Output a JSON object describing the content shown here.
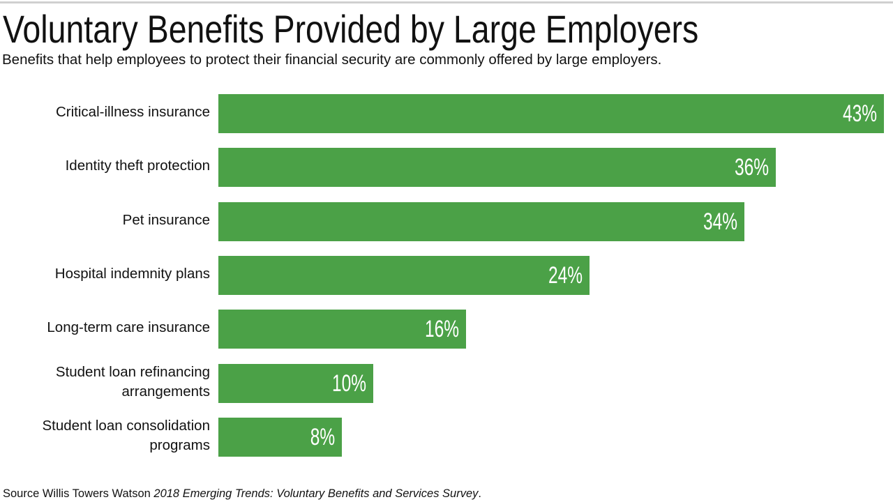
{
  "chart_data": {
    "type": "bar",
    "orientation": "horizontal",
    "title": "Voluntary Benefits Provided by Large Employers",
    "subtitle": "Benefits that help employees to protect their financial security are commonly offered by large employers.",
    "categories": [
      [
        "Critical-illness insurance"
      ],
      [
        "Identity theft protection"
      ],
      [
        "Pet insurance"
      ],
      [
        "Hospital indemnity plans"
      ],
      [
        "Long-term care insurance"
      ],
      [
        "Student loan refinancing",
        "arrangements"
      ],
      [
        "Student loan consolidation",
        "programs"
      ]
    ],
    "values": [
      43,
      36,
      34,
      24,
      16,
      10,
      8
    ],
    "value_labels": [
      "43%",
      "36%",
      "34%",
      "24%",
      "16%",
      "10%",
      "8%"
    ],
    "xlim": [
      0,
      43
    ],
    "xlabel": "",
    "ylabel": "",
    "grid": false,
    "bar_color": "#4ba147"
  },
  "source": {
    "prefix": "Source Willis Towers Watson ",
    "title": "2018 Emerging Trends: Voluntary Benefits and Services Survey",
    "suffix": "."
  }
}
